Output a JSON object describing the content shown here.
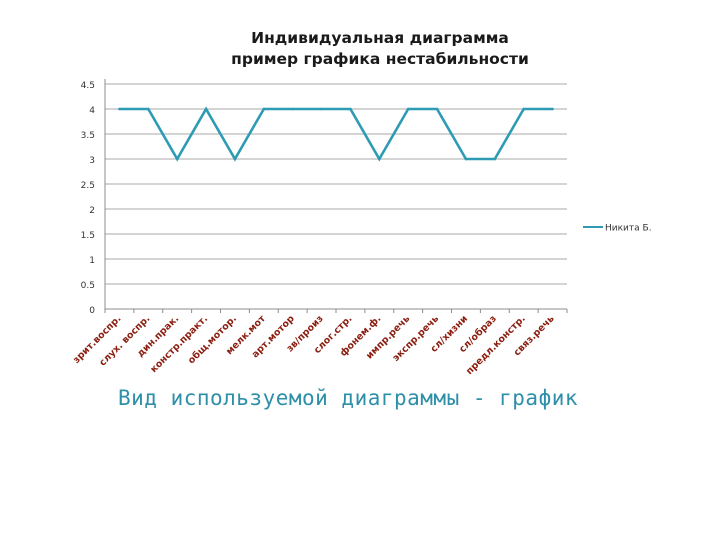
{
  "chart_data": {
    "type": "line",
    "title": [
      "Индивидуальная диаграмма",
      "пример графика нестабильности"
    ],
    "categories": [
      "зрит.воспр.",
      "слух. воспр.",
      "дин.прак.",
      "констр.практ.",
      "общ.мотор.",
      "мелк.мот",
      "арт.мотор",
      "зв/произ",
      "слог.стр.",
      "фонем.ф.",
      "импр.речь",
      "экспр.речь",
      "сл/хизни",
      "сл/образ",
      "предл.констр.",
      "связ.речь"
    ],
    "series": [
      {
        "name": "Никита Б.",
        "values": [
          4,
          4,
          3,
          4,
          3,
          4,
          4,
          4,
          4,
          3,
          4,
          4,
          3,
          3,
          4,
          4
        ],
        "color": "#2e9bb5"
      }
    ],
    "y_ticks": [
      "0",
      "0.5",
      "1",
      "1.5",
      "2",
      "2.5",
      "3",
      "3.5",
      "4",
      "4.5"
    ],
    "ylim": [
      0,
      4.5
    ],
    "grid": true,
    "legend": "right"
  },
  "caption": "Вид используемой диаграммы - график"
}
